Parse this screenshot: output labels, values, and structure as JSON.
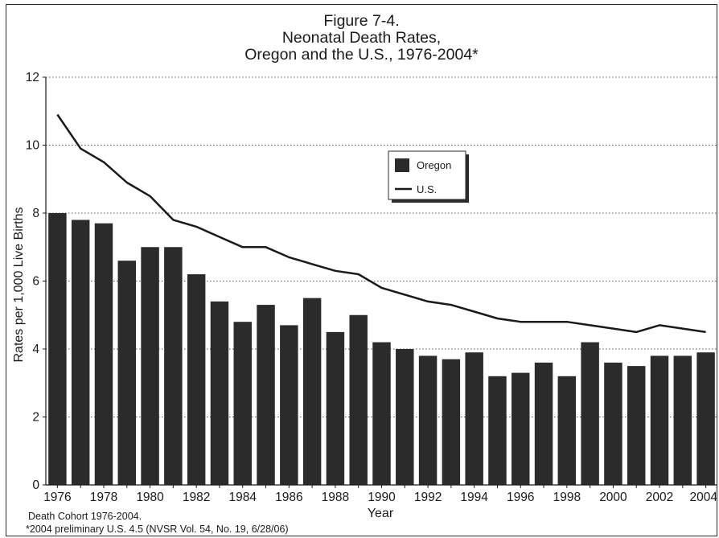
{
  "chart_data": {
    "type": "bar",
    "title": [
      "Figure 7-4.",
      "Neonatal Death Rates,",
      "Oregon and the U.S., 1976-2004*"
    ],
    "xlabel": "Year",
    "ylabel": "Rates per 1,000 Live Births",
    "ylim": [
      0,
      12
    ],
    "yticks": [
      0,
      2,
      4,
      6,
      8,
      10,
      12
    ],
    "grid": "horizontal dotted",
    "legend_position": "center",
    "categories": [
      1976,
      1977,
      1978,
      1979,
      1980,
      1981,
      1982,
      1983,
      1984,
      1985,
      1986,
      1987,
      1988,
      1989,
      1990,
      1991,
      1992,
      1993,
      1994,
      1995,
      1996,
      1997,
      1998,
      1999,
      2000,
      2001,
      2002,
      2003,
      2004
    ],
    "xtick_labels": [
      "1976",
      "1978",
      "1980",
      "1982",
      "1984",
      "1986",
      "1988",
      "1990",
      "1992",
      "1994",
      "1996",
      "1998",
      "2000",
      "2002",
      "2004"
    ],
    "series": [
      {
        "name": "Oregon",
        "type": "bar",
        "color": "#2b2b2b",
        "values": [
          8.0,
          7.8,
          7.7,
          6.6,
          7.0,
          7.0,
          6.2,
          5.4,
          4.8,
          5.3,
          4.7,
          5.5,
          4.5,
          5.0,
          4.2,
          4.0,
          3.8,
          3.7,
          3.9,
          3.2,
          3.3,
          3.6,
          3.2,
          4.2,
          3.6,
          3.5,
          3.8,
          3.8,
          3.9
        ]
      },
      {
        "name": "U.S.",
        "type": "line",
        "color": "#1a1a1a",
        "values": [
          10.9,
          9.9,
          9.5,
          8.9,
          8.5,
          7.8,
          7.6,
          7.3,
          7.0,
          7.0,
          6.7,
          6.5,
          6.3,
          6.2,
          5.8,
          5.6,
          5.4,
          5.3,
          5.1,
          4.9,
          4.8,
          4.8,
          4.8,
          4.7,
          4.6,
          4.5,
          4.7,
          4.6,
          4.5
        ]
      }
    ],
    "notes": [
      "Death Cohort 1976-2004.",
      "*2004 preliminary U.S. 4.5 (NVSR Vol. 54, No. 19, 6/28/06)"
    ]
  }
}
